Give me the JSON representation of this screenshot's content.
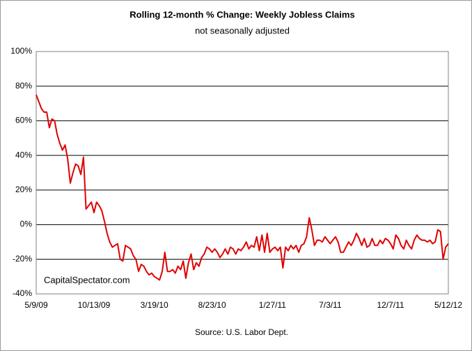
{
  "chart_data": {
    "type": "line",
    "title": "Rolling 12-month %  Change: Weekly Jobless Claims",
    "subtitle": "not seasonally adjusted",
    "annotations": [
      "CapitalSpectator.com",
      "Source: U.S. Labor Dept."
    ],
    "categories": [
      "5/9/09",
      null,
      null,
      null,
      null,
      null,
      null,
      null,
      null,
      null,
      null,
      null,
      null,
      null,
      null,
      null,
      null,
      null,
      null,
      null,
      null,
      null,
      "10/13/09",
      null,
      null,
      null,
      null,
      null,
      null,
      null,
      null,
      null,
      null,
      null,
      null,
      null,
      null,
      null,
      null,
      null,
      null,
      null,
      null,
      null,
      null,
      "3/19/10",
      null,
      null,
      null,
      null,
      null,
      null,
      null,
      null,
      null,
      null,
      null,
      null,
      null,
      null,
      null,
      null,
      null,
      null,
      null,
      null,
      null,
      "8/23/10",
      null,
      null,
      null,
      null,
      null,
      null,
      null,
      null,
      null,
      null,
      null,
      null,
      null,
      null,
      null,
      null,
      null,
      null,
      null,
      null,
      null,
      null,
      "1/27/11",
      null,
      null,
      null,
      null,
      null,
      null,
      null,
      null,
      null,
      null,
      null,
      null,
      null,
      null,
      null,
      null,
      null,
      null,
      null,
      null,
      null,
      "7/3/11",
      null,
      null,
      null,
      null,
      null,
      null,
      null,
      null,
      null,
      null,
      null,
      null,
      null,
      null,
      null,
      null,
      null,
      null,
      null,
      null,
      null,
      null,
      "12/7/11",
      null,
      null,
      null,
      null,
      null,
      null,
      null,
      null,
      null,
      null,
      null,
      null,
      null,
      null,
      null,
      null,
      null,
      null,
      null,
      null,
      null,
      "5/12/12"
    ],
    "series": [
      {
        "color": "#e00000",
        "values": [
          75,
          71,
          67,
          65,
          65,
          56,
          61,
          60,
          52,
          47,
          43,
          46,
          38,
          24,
          30,
          35,
          34,
          29,
          39,
          9,
          11,
          13,
          7,
          13,
          11,
          8,
          2,
          -5,
          -10,
          -13,
          -12,
          -11,
          -20,
          -21,
          -12,
          -13,
          -14,
          -18,
          -20,
          -27,
          -23,
          -24,
          -27,
          -29,
          -28,
          -30,
          -31,
          -32,
          -27,
          -16,
          -27,
          -27,
          -26,
          -28,
          -24,
          -26,
          -21,
          -31,
          -22,
          -17,
          -26,
          -22,
          -24,
          -19,
          -17,
          -13,
          -14,
          -16,
          -14,
          -16,
          -19,
          -17,
          -14,
          -17,
          -13,
          -14,
          -17,
          -14,
          -15,
          -13,
          -10,
          -14,
          -12,
          -13,
          -7,
          -15,
          -6,
          -16,
          -5,
          -16,
          -14,
          -13,
          -15,
          -13,
          -25,
          -13,
          -15,
          -12,
          -14,
          -12,
          -16,
          -12,
          -11,
          -7,
          4,
          -3,
          -12,
          -9,
          -9,
          -10,
          -7,
          -9,
          -11,
          -9,
          -7,
          -10,
          -16,
          -16,
          -13,
          -10,
          -12,
          -9,
          -5,
          -8,
          -12,
          -8,
          -13,
          -12,
          -8,
          -12,
          -12,
          -9,
          -11,
          -8,
          -9,
          -11,
          -14,
          -6,
          -8,
          -12,
          -14,
          -9,
          -12,
          -14,
          -9,
          -6,
          -8,
          -9,
          -9,
          -10,
          -9,
          -11,
          -10,
          -3,
          -4,
          -20,
          -13,
          -11
        ]
      }
    ],
    "ylim": [
      -40,
      100
    ],
    "yticks": [
      {
        "value": -40,
        "label": "-40%"
      },
      {
        "value": -20,
        "label": "-20%"
      },
      {
        "value": 0,
        "label": "0%"
      },
      {
        "value": 20,
        "label": "20%"
      },
      {
        "value": 40,
        "label": "40%"
      },
      {
        "value": 60,
        "label": "60%"
      },
      {
        "value": 80,
        "label": "80%"
      },
      {
        "value": 100,
        "label": "100%"
      }
    ],
    "grid": true
  }
}
